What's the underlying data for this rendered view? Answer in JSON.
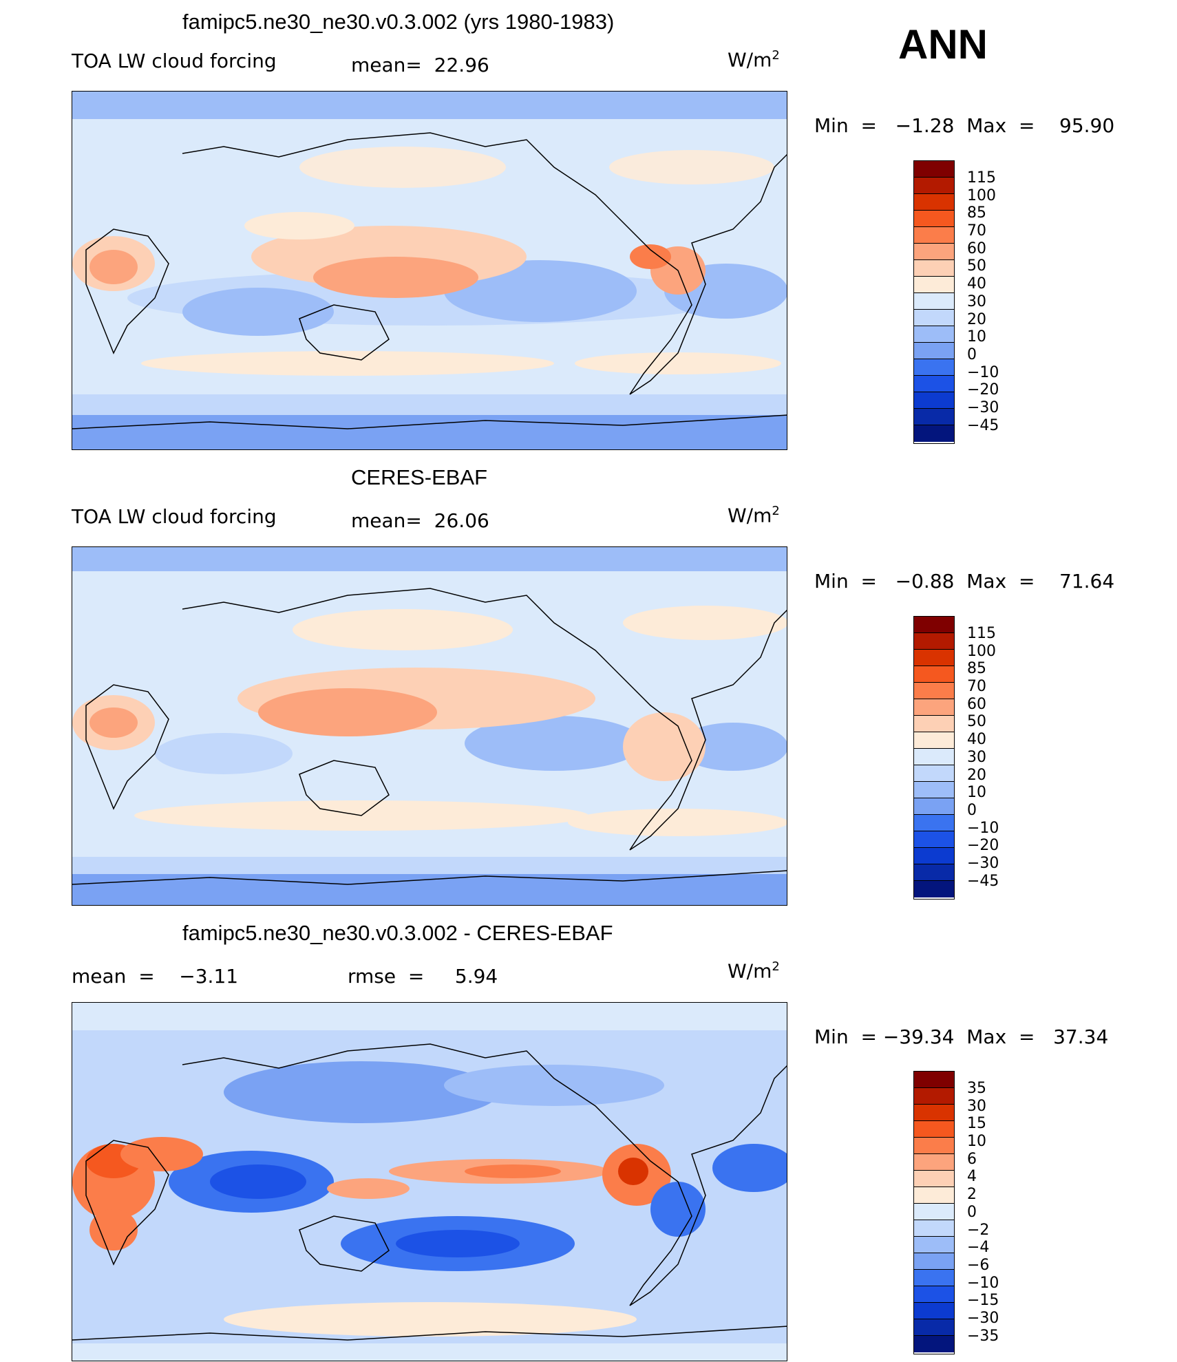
{
  "season": "ANN",
  "panels": [
    {
      "title": "famipc5.ne30_ne30.v0.3.002 (yrs 1980-1983)",
      "left_label": "TOA LW cloud forcing",
      "mid_label": "mean=  22.96",
      "units": "W/m",
      "units_sup": "2",
      "minmax": "Min  =   −1.28  Max  =    95.90",
      "levels": [
        "115",
        "100",
        "85",
        "70",
        "60",
        "50",
        "40",
        "30",
        "20",
        "10",
        "0",
        "−10",
        "−20",
        "−30",
        "−45"
      ],
      "colors": [
        "#7f0000",
        "#b31a00",
        "#d93300",
        "#f5581f",
        "#fb7d4a",
        "#fca47d",
        "#fdd0b5",
        "#fdebd8",
        "#dbeafb",
        "#c2d8fb",
        "#9dbdf8",
        "#7aa2f3",
        "#3a73f0",
        "#1c52e6",
        "#0c3bd0",
        "#082aa8",
        "#03157d"
      ]
    },
    {
      "title": "CERES-EBAF",
      "left_label": "TOA LW cloud forcing",
      "mid_label": "mean=  26.06",
      "units": "W/m",
      "units_sup": "2",
      "minmax": "Min  =   −0.88  Max  =    71.64",
      "levels": [
        "115",
        "100",
        "85",
        "70",
        "60",
        "50",
        "40",
        "30",
        "20",
        "10",
        "0",
        "−10",
        "−20",
        "−30",
        "−45"
      ],
      "colors": [
        "#7f0000",
        "#b31a00",
        "#d93300",
        "#f5581f",
        "#fb7d4a",
        "#fca47d",
        "#fdd0b5",
        "#fdebd8",
        "#dbeafb",
        "#c2d8fb",
        "#9dbdf8",
        "#7aa2f3",
        "#3a73f0",
        "#1c52e6",
        "#0c3bd0",
        "#082aa8",
        "#03157d"
      ]
    },
    {
      "title": "famipc5.ne30_ne30.v0.3.002 - CERES-EBAF",
      "left_label": "mean  =    −3.11",
      "mid_label": "rmse  =     5.94",
      "units": "W/m",
      "units_sup": "2",
      "minmax": "Min  = −39.34  Max  =   37.34",
      "levels": [
        "35",
        "30",
        "15",
        "10",
        "6",
        "4",
        "2",
        "0",
        "−2",
        "−4",
        "−6",
        "−10",
        "−15",
        "−30",
        "−35"
      ],
      "colors": [
        "#7f0000",
        "#b31a00",
        "#d93300",
        "#f5581f",
        "#fb7d4a",
        "#fca47d",
        "#fdd0b5",
        "#fdebd8",
        "#dbeafb",
        "#c2d8fb",
        "#9dbdf8",
        "#7aa2f3",
        "#3a73f0",
        "#1c52e6",
        "#0c3bd0",
        "#082aa8",
        "#03157d"
      ]
    }
  ],
  "chart_data": [
    {
      "type": "heatmap",
      "title": "famipc5.ne30_ne30.v0.3.002 (yrs 1980-1983)",
      "variable": "TOA LW cloud forcing",
      "units": "W/m2",
      "mean": 22.96,
      "min": -1.28,
      "max": 95.9,
      "contour_levels": [
        -45,
        -30,
        -20,
        -10,
        0,
        10,
        20,
        30,
        40,
        50,
        60,
        70,
        85,
        100,
        115
      ]
    },
    {
      "type": "heatmap",
      "title": "CERES-EBAF",
      "variable": "TOA LW cloud forcing",
      "units": "W/m2",
      "mean": 26.06,
      "min": -0.88,
      "max": 71.64,
      "contour_levels": [
        -45,
        -30,
        -20,
        -10,
        0,
        10,
        20,
        30,
        40,
        50,
        60,
        70,
        85,
        100,
        115
      ]
    },
    {
      "type": "heatmap",
      "title": "famipc5.ne30_ne30.v0.3.002 - CERES-EBAF",
      "units": "W/m2",
      "mean": -3.11,
      "rmse": 5.94,
      "min": -39.34,
      "max": 37.34,
      "contour_levels": [
        -35,
        -30,
        -15,
        -10,
        -6,
        -4,
        -2,
        0,
        2,
        4,
        6,
        10,
        15,
        30,
        35
      ]
    }
  ]
}
